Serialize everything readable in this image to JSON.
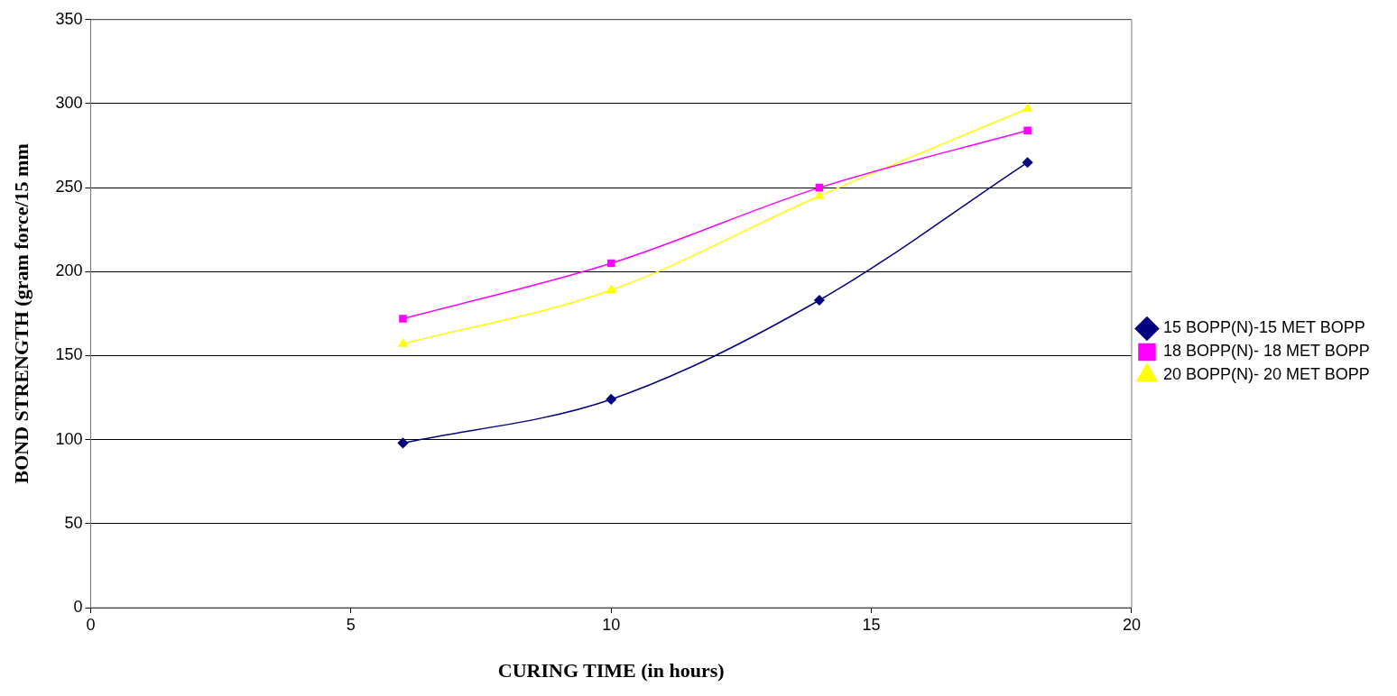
{
  "chart_data": {
    "type": "line",
    "xlabel": "CURING TIME (in hours)",
    "ylabel": "BOND STRENGTH (gram force/15 mm",
    "x": [
      6,
      10,
      14,
      18
    ],
    "series": [
      {
        "name": "15 BOPP(N)-15 MET BOPP",
        "color": "#000080",
        "marker": "diamond",
        "values": [
          98,
          124,
          183,
          265
        ]
      },
      {
        "name": "18 BOPP(N)- 18 MET BOPP",
        "color": "#ff00ff",
        "marker": "square",
        "values": [
          172,
          205,
          250,
          284
        ]
      },
      {
        "name": "20 BOPP(N)- 20 MET BOPP",
        "color": "#ffff00",
        "marker": "triangle",
        "values": [
          157,
          189,
          245,
          297
        ]
      }
    ],
    "xlim": [
      0,
      20
    ],
    "xticks": [
      0,
      5,
      10,
      15,
      20
    ],
    "ylim": [
      0,
      350
    ],
    "yticks": [
      0,
      50,
      100,
      150,
      200,
      250,
      300,
      350
    ],
    "grid": "y",
    "legend": "right",
    "line_style": "solid"
  }
}
